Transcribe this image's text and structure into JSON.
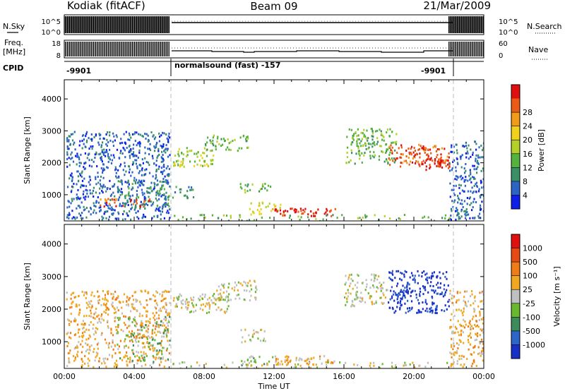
{
  "header": {
    "station": "Kodiak (fitACF)",
    "beam": "Beam 09",
    "date": "21/Mar/2009"
  },
  "summary_panels": {
    "nsky_label": "N.Sky",
    "nsearch_label": "N.Search",
    "nsky_ticks": [
      "10^5",
      "10^0"
    ],
    "nsearch_ticks": [
      "10^5",
      "10^0"
    ],
    "freq_label_1": "Freq.",
    "freq_label_2": "[MHz]",
    "freq_ticks": [
      "18",
      "8"
    ],
    "nave_label": "Nave",
    "nave_ticks": [
      "60",
      "0"
    ],
    "cpid_label": "CPID",
    "cpid_segments": [
      {
        "start_hour": 0,
        "end_hour": 6,
        "label": "-9901"
      },
      {
        "start_hour": 6,
        "end_hour": 22,
        "label": "normalsound (fast) -157"
      },
      {
        "start_hour": 22,
        "end_hour": 24,
        "label": "-9901"
      }
    ]
  },
  "chart_data": [
    {
      "type": "heatmap",
      "title": "",
      "xlabel": "Time UT",
      "ylabel": "Slant Range [km]",
      "x_ticks": [
        "00:00",
        "04:00",
        "08:00",
        "12:00",
        "16:00",
        "20:00",
        "00:00"
      ],
      "x_range_hours": [
        0,
        24
      ],
      "y_ticks": [
        1000,
        2000,
        3000,
        4000
      ],
      "ylim": [
        180,
        4600
      ],
      "colorbar": {
        "label": "Power [dB]",
        "ticks": [
          "4",
          "8",
          "12",
          "16",
          "20",
          "24",
          "28"
        ],
        "colors": [
          "#0d1fe8",
          "#2c64c6",
          "#3a8f67",
          "#55b23e",
          "#b5cf2a",
          "#f0d21c",
          "#f29b1a",
          "#ec5b16",
          "#e01010"
        ]
      },
      "regions": [
        {
          "t0": 0.1,
          "t1": 6.0,
          "r0": 250,
          "r1": 3000,
          "level": 1,
          "density": 0.55
        },
        {
          "t0": 3.0,
          "t1": 6.0,
          "r0": 600,
          "r1": 1500,
          "level": 2,
          "density": 0.4
        },
        {
          "t0": 2.0,
          "t1": 5.0,
          "r0": 650,
          "r1": 900,
          "level": 7,
          "density": 0.5
        },
        {
          "t0": 6.2,
          "t1": 8.5,
          "r0": 1900,
          "r1": 2500,
          "level": 4,
          "density": 0.6
        },
        {
          "t0": 8.0,
          "t1": 10.5,
          "r0": 2400,
          "r1": 2900,
          "level": 3,
          "density": 0.5
        },
        {
          "t0": 6.1,
          "t1": 7.5,
          "r0": 900,
          "r1": 1300,
          "level": 2,
          "density": 0.4
        },
        {
          "t0": 10.0,
          "t1": 11.8,
          "r0": 1100,
          "r1": 1400,
          "level": 3,
          "density": 0.5
        },
        {
          "t0": 10.5,
          "t1": 12.5,
          "r0": 400,
          "r1": 800,
          "level": 5,
          "density": 0.45
        },
        {
          "t0": 12.0,
          "t1": 15.5,
          "r0": 350,
          "r1": 600,
          "level": 8,
          "density": 0.7
        },
        {
          "t0": 16.0,
          "t1": 19.0,
          "r0": 2000,
          "r1": 3100,
          "level": 3,
          "density": 0.55
        },
        {
          "t0": 18.5,
          "t1": 22.0,
          "r0": 1900,
          "r1": 2600,
          "level": 7,
          "density": 0.6
        },
        {
          "t0": 20.0,
          "t1": 22.0,
          "r0": 1800,
          "r1": 2200,
          "level": 8,
          "density": 0.55
        },
        {
          "t0": 22.0,
          "t1": 24.0,
          "r0": 250,
          "r1": 2700,
          "level": 1,
          "density": 0.55
        },
        {
          "t0": 6.0,
          "t1": 22.0,
          "r0": 180,
          "r1": 400,
          "level": 3,
          "density": 0.25
        }
      ]
    },
    {
      "type": "heatmap",
      "title": "",
      "xlabel": "Time UT",
      "ylabel": "Slant Range [km]",
      "x_ticks": [
        "00:00",
        "04:00",
        "08:00",
        "12:00",
        "16:00",
        "20:00",
        "00:00"
      ],
      "x_range_hours": [
        0,
        24
      ],
      "y_ticks": [
        1000,
        2000,
        3000,
        4000
      ],
      "ylim": [
        180,
        4600
      ],
      "colorbar": {
        "label": "Velocity [m s⁻¹]",
        "ticks": [
          "1000",
          "500",
          "100",
          "25",
          "-25",
          "-100",
          "-500",
          "-1000"
        ],
        "colors": [
          "#1830c8",
          "#2d65c8",
          "#3d8a5a",
          "#6ab82e",
          "#c0c0c0",
          "#f0a820",
          "#ee7d18",
          "#e84a14",
          "#e01010"
        ]
      },
      "regions": [
        {
          "t0": 0.1,
          "t1": 6.0,
          "r0": 250,
          "r1": 2600,
          "level": 5,
          "density": 0.5
        },
        {
          "t0": 3.0,
          "t1": 6.0,
          "r0": 400,
          "r1": 1800,
          "level": 3,
          "density": 0.3
        },
        {
          "t0": 6.2,
          "t1": 9.5,
          "r0": 1900,
          "r1": 2500,
          "level": 4,
          "density": 0.6
        },
        {
          "t0": 8.5,
          "t1": 11.0,
          "r0": 2300,
          "r1": 2900,
          "level": 4,
          "density": 0.5
        },
        {
          "t0": 10.0,
          "t1": 11.5,
          "r0": 1000,
          "r1": 1400,
          "level": 4,
          "density": 0.5
        },
        {
          "t0": 10.0,
          "t1": 12.0,
          "r0": 300,
          "r1": 600,
          "level": 3,
          "density": 0.5
        },
        {
          "t0": 12.0,
          "t1": 15.5,
          "r0": 300,
          "r1": 600,
          "level": 5,
          "density": 0.65
        },
        {
          "t0": 16.0,
          "t1": 18.5,
          "r0": 2100,
          "r1": 3100,
          "level": 4,
          "density": 0.5
        },
        {
          "t0": 18.5,
          "t1": 22.0,
          "r0": 1900,
          "r1": 3200,
          "level": 0,
          "density": 0.6
        },
        {
          "t0": 22.0,
          "t1": 24.0,
          "r0": 250,
          "r1": 2600,
          "level": 5,
          "density": 0.5
        },
        {
          "t0": 6.0,
          "t1": 22.0,
          "r0": 180,
          "r1": 400,
          "level": 4,
          "density": 0.25
        }
      ]
    }
  ]
}
